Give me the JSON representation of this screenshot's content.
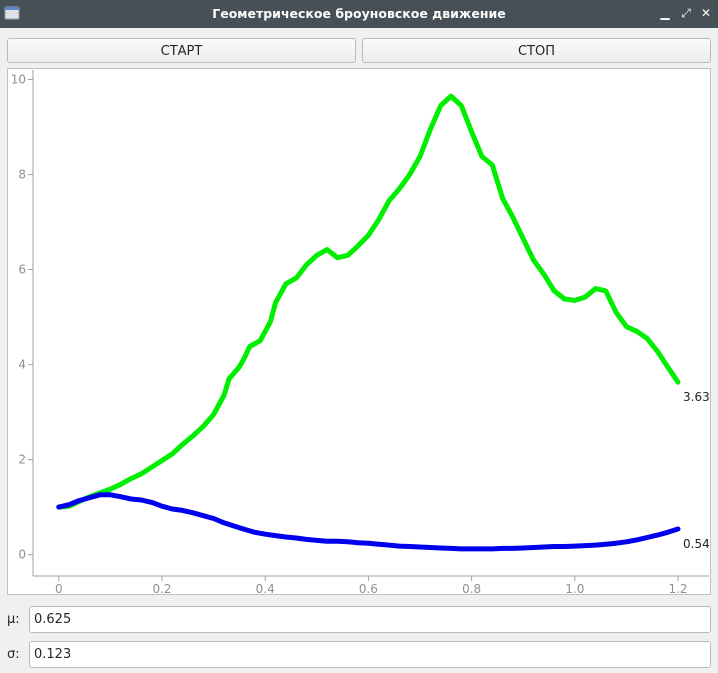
{
  "window": {
    "title": "Геометрическое броуновское движение"
  },
  "toolbar": {
    "start_label": "СТАРТ",
    "stop_label": "СТОП"
  },
  "chart_data": {
    "type": "line",
    "x_ticks": [
      "0",
      "0.2",
      "0.4",
      "0.6",
      "0.8",
      "1.0",
      "1.2"
    ],
    "y_ticks": [
      "0",
      "2",
      "4",
      "6",
      "8",
      "10"
    ],
    "xlim": [
      -0.05,
      1.26
    ],
    "ylim": [
      -0.45,
      10.2
    ],
    "series": [
      {
        "color": "#00ee00",
        "end_label": "3.63",
        "points": [
          [
            0,
            1
          ],
          [
            0.02,
            1.02
          ],
          [
            0.04,
            1.12
          ],
          [
            0.06,
            1.22
          ],
          [
            0.08,
            1.3
          ],
          [
            0.1,
            1.38
          ],
          [
            0.12,
            1.48
          ],
          [
            0.14,
            1.6
          ],
          [
            0.16,
            1.7
          ],
          [
            0.18,
            1.84
          ],
          [
            0.2,
            1.98
          ],
          [
            0.22,
            2.12
          ],
          [
            0.24,
            2.32
          ],
          [
            0.26,
            2.5
          ],
          [
            0.28,
            2.7
          ],
          [
            0.3,
            2.95
          ],
          [
            0.32,
            3.35
          ],
          [
            0.33,
            3.7
          ],
          [
            0.35,
            3.95
          ],
          [
            0.36,
            4.15
          ],
          [
            0.37,
            4.38
          ],
          [
            0.39,
            4.5
          ],
          [
            0.41,
            4.9
          ],
          [
            0.42,
            5.3
          ],
          [
            0.44,
            5.7
          ],
          [
            0.46,
            5.82
          ],
          [
            0.48,
            6.1
          ],
          [
            0.5,
            6.3
          ],
          [
            0.52,
            6.42
          ],
          [
            0.54,
            6.25
          ],
          [
            0.56,
            6.3
          ],
          [
            0.58,
            6.5
          ],
          [
            0.6,
            6.72
          ],
          [
            0.62,
            7.05
          ],
          [
            0.64,
            7.45
          ],
          [
            0.66,
            7.7
          ],
          [
            0.68,
            8
          ],
          [
            0.7,
            8.38
          ],
          [
            0.72,
            8.95
          ],
          [
            0.74,
            9.45
          ],
          [
            0.76,
            9.65
          ],
          [
            0.78,
            9.45
          ],
          [
            0.8,
            8.9
          ],
          [
            0.82,
            8.38
          ],
          [
            0.84,
            8.2
          ],
          [
            0.86,
            7.5
          ],
          [
            0.88,
            7.1
          ],
          [
            0.9,
            6.65
          ],
          [
            0.92,
            6.2
          ],
          [
            0.94,
            5.9
          ],
          [
            0.96,
            5.55
          ],
          [
            0.98,
            5.38
          ],
          [
            1.0,
            5.35
          ],
          [
            1.02,
            5.42
          ],
          [
            1.04,
            5.6
          ],
          [
            1.06,
            5.55
          ],
          [
            1.08,
            5.1
          ],
          [
            1.1,
            4.8
          ],
          [
            1.12,
            4.7
          ],
          [
            1.14,
            4.55
          ],
          [
            1.16,
            4.28
          ],
          [
            1.18,
            3.95
          ],
          [
            1.2,
            3.63
          ]
        ]
      },
      {
        "color": "#0000ee",
        "end_label": "0.54",
        "points": [
          [
            0,
            1
          ],
          [
            0.02,
            1.05
          ],
          [
            0.04,
            1.14
          ],
          [
            0.06,
            1.2
          ],
          [
            0.08,
            1.26
          ],
          [
            0.1,
            1.26
          ],
          [
            0.12,
            1.22
          ],
          [
            0.14,
            1.17
          ],
          [
            0.16,
            1.15
          ],
          [
            0.18,
            1.1
          ],
          [
            0.2,
            1.02
          ],
          [
            0.22,
            0.96
          ],
          [
            0.24,
            0.93
          ],
          [
            0.26,
            0.88
          ],
          [
            0.28,
            0.82
          ],
          [
            0.3,
            0.76
          ],
          [
            0.32,
            0.67
          ],
          [
            0.34,
            0.6
          ],
          [
            0.36,
            0.53
          ],
          [
            0.38,
            0.47
          ],
          [
            0.4,
            0.43
          ],
          [
            0.42,
            0.4
          ],
          [
            0.44,
            0.37
          ],
          [
            0.46,
            0.35
          ],
          [
            0.48,
            0.32
          ],
          [
            0.5,
            0.3
          ],
          [
            0.52,
            0.28
          ],
          [
            0.54,
            0.28
          ],
          [
            0.56,
            0.27
          ],
          [
            0.58,
            0.25
          ],
          [
            0.6,
            0.24
          ],
          [
            0.62,
            0.22
          ],
          [
            0.64,
            0.2
          ],
          [
            0.66,
            0.18
          ],
          [
            0.68,
            0.17
          ],
          [
            0.7,
            0.16
          ],
          [
            0.72,
            0.15
          ],
          [
            0.74,
            0.14
          ],
          [
            0.76,
            0.13
          ],
          [
            0.78,
            0.12
          ],
          [
            0.8,
            0.12
          ],
          [
            0.82,
            0.12
          ],
          [
            0.84,
            0.12
          ],
          [
            0.86,
            0.13
          ],
          [
            0.88,
            0.13
          ],
          [
            0.9,
            0.14
          ],
          [
            0.92,
            0.15
          ],
          [
            0.94,
            0.16
          ],
          [
            0.96,
            0.17
          ],
          [
            0.98,
            0.17
          ],
          [
            1.0,
            0.18
          ],
          [
            1.02,
            0.19
          ],
          [
            1.04,
            0.2
          ],
          [
            1.06,
            0.22
          ],
          [
            1.08,
            0.24
          ],
          [
            1.1,
            0.27
          ],
          [
            1.12,
            0.31
          ],
          [
            1.14,
            0.36
          ],
          [
            1.16,
            0.41
          ],
          [
            1.18,
            0.47
          ],
          [
            1.2,
            0.54
          ]
        ]
      }
    ]
  },
  "params": {
    "mu_label": "μ:",
    "mu_value": "0.625",
    "sigma_label": "σ:",
    "sigma_value": "0.123"
  }
}
